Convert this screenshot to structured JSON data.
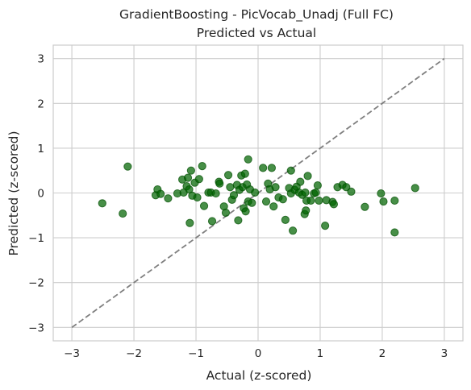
{
  "chart_data": {
    "type": "scatter",
    "title_line1": "GradientBoosting - PicVocab_Unadj (Full FC)",
    "title_line2": "Predicted vs Actual",
    "xlabel": "Actual (z-scored)",
    "ylabel": "Predicted (z-scored)",
    "xlim": [
      -3.3,
      3.3
    ],
    "ylim": [
      -3.3,
      3.3
    ],
    "xticks": [
      -3,
      -2,
      -1,
      0,
      1,
      2,
      3
    ],
    "yticks": [
      -3,
      -2,
      -1,
      0,
      1,
      2,
      3
    ],
    "tick_labels_x": [
      "−3",
      "−2",
      "−1",
      "0",
      "1",
      "2",
      "3"
    ],
    "tick_labels_y": [
      "−3",
      "−2",
      "−1",
      "0",
      "1",
      "2",
      "3"
    ],
    "grid": true,
    "point_color": "#006400",
    "reference_line": {
      "x": [
        -3,
        3
      ],
      "y": [
        -3,
        3
      ],
      "style": "dashed",
      "color": "#7f7f7f"
    },
    "points": [
      {
        "x": -2.51,
        "y": -0.23
      },
      {
        "x": -2.18,
        "y": -0.46
      },
      {
        "x": -2.1,
        "y": 0.59
      },
      {
        "x": -1.65,
        "y": -0.05
      },
      {
        "x": -1.62,
        "y": 0.08
      },
      {
        "x": -1.57,
        "y": -0.02
      },
      {
        "x": -1.45,
        "y": -0.12
      },
      {
        "x": -1.3,
        "y": -0.01
      },
      {
        "x": -1.22,
        "y": 0.3
      },
      {
        "x": -1.2,
        "y": 0.01
      },
      {
        "x": -1.15,
        "y": 0.15
      },
      {
        "x": -1.13,
        "y": 0.34
      },
      {
        "x": -1.11,
        "y": 0.08
      },
      {
        "x": -1.1,
        "y": -0.67
      },
      {
        "x": -1.08,
        "y": 0.5
      },
      {
        "x": -1.06,
        "y": -0.06
      },
      {
        "x": -1.02,
        "y": 0.23
      },
      {
        "x": -0.98,
        "y": -0.1
      },
      {
        "x": -0.95,
        "y": 0.31
      },
      {
        "x": -0.9,
        "y": 0.6
      },
      {
        "x": -0.87,
        "y": -0.29
      },
      {
        "x": -0.8,
        "y": 0.01
      },
      {
        "x": -0.76,
        "y": 0.01
      },
      {
        "x": -0.74,
        "y": -0.63
      },
      {
        "x": -0.68,
        "y": -0.01
      },
      {
        "x": -0.63,
        "y": 0.25
      },
      {
        "x": -0.62,
        "y": 0.21
      },
      {
        "x": -0.55,
        "y": -0.3
      },
      {
        "x": -0.52,
        "y": -0.44
      },
      {
        "x": -0.48,
        "y": 0.4
      },
      {
        "x": -0.45,
        "y": 0.13
      },
      {
        "x": -0.42,
        "y": -0.15
      },
      {
        "x": -0.39,
        "y": -0.05
      },
      {
        "x": -0.34,
        "y": 0.18
      },
      {
        "x": -0.32,
        "y": -0.61
      },
      {
        "x": -0.3,
        "y": 0.07
      },
      {
        "x": -0.27,
        "y": 0.39
      },
      {
        "x": -0.25,
        "y": 0.13
      },
      {
        "x": -0.23,
        "y": -0.34
      },
      {
        "x": -0.21,
        "y": 0.43
      },
      {
        "x": -0.2,
        "y": -0.41
      },
      {
        "x": -0.18,
        "y": 0.19
      },
      {
        "x": -0.16,
        "y": -0.19
      },
      {
        "x": -0.16,
        "y": 0.75
      },
      {
        "x": -0.13,
        "y": 0.08
      },
      {
        "x": -0.1,
        "y": -0.22
      },
      {
        "x": -0.05,
        "y": 0.01
      },
      {
        "x": 0.08,
        "y": 0.56
      },
      {
        "x": 0.13,
        "y": -0.19
      },
      {
        "x": 0.16,
        "y": 0.21
      },
      {
        "x": 0.19,
        "y": 0.08
      },
      {
        "x": 0.22,
        "y": 0.56
      },
      {
        "x": 0.25,
        "y": -0.3
      },
      {
        "x": 0.28,
        "y": 0.13
      },
      {
        "x": 0.33,
        "y": -0.1
      },
      {
        "x": 0.4,
        "y": -0.14
      },
      {
        "x": 0.44,
        "y": -0.6
      },
      {
        "x": 0.5,
        "y": 0.11
      },
      {
        "x": 0.53,
        "y": -0.01
      },
      {
        "x": 0.53,
        "y": 0.5
      },
      {
        "x": 0.56,
        "y": -0.84
      },
      {
        "x": 0.59,
        "y": 0.07
      },
      {
        "x": 0.62,
        "y": 0.14
      },
      {
        "x": 0.66,
        "y": 0.01
      },
      {
        "x": 0.68,
        "y": 0.25
      },
      {
        "x": 0.71,
        "y": -0.04
      },
      {
        "x": 0.75,
        "y": -0.47
      },
      {
        "x": 0.76,
        "y": 0.01
      },
      {
        "x": 0.77,
        "y": -0.39
      },
      {
        "x": 0.78,
        "y": -0.17
      },
      {
        "x": 0.8,
        "y": 0.38
      },
      {
        "x": 0.85,
        "y": -0.17
      },
      {
        "x": 0.9,
        "y": -0.01
      },
      {
        "x": 0.93,
        "y": 0.01
      },
      {
        "x": 0.96,
        "y": 0.17
      },
      {
        "x": 0.98,
        "y": -0.17
      },
      {
        "x": 1.08,
        "y": -0.73
      },
      {
        "x": 1.1,
        "y": -0.16
      },
      {
        "x": 1.2,
        "y": -0.2
      },
      {
        "x": 1.22,
        "y": -0.25
      },
      {
        "x": 1.28,
        "y": 0.13
      },
      {
        "x": 1.36,
        "y": 0.18
      },
      {
        "x": 1.42,
        "y": 0.13
      },
      {
        "x": 1.5,
        "y": 0.03
      },
      {
        "x": 1.72,
        "y": -0.31
      },
      {
        "x": 1.98,
        "y": -0.01
      },
      {
        "x": 2.02,
        "y": -0.19
      },
      {
        "x": 2.2,
        "y": -0.17
      },
      {
        "x": 2.2,
        "y": -0.88
      },
      {
        "x": 2.53,
        "y": 0.11
      }
    ]
  }
}
